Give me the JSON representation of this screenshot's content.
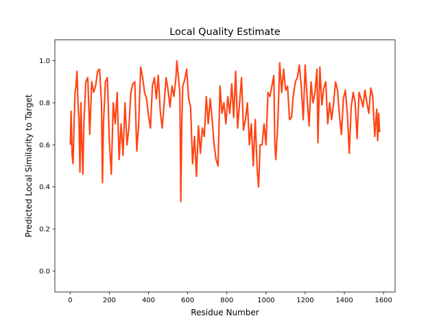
{
  "chart_data": {
    "type": "line",
    "title": "Local Quality Estimate",
    "xlabel": "Residue Number",
    "ylabel": "Predicted Local Similarity to Target",
    "xlim": [
      -78,
      1659
    ],
    "ylim": [
      -0.1,
      1.1
    ],
    "xticks": [
      0,
      200,
      400,
      600,
      800,
      1000,
      1200,
      1400,
      1600
    ],
    "xtick_labels": [
      "0",
      "200",
      "400",
      "600",
      "800",
      "1000",
      "1200",
      "1400",
      "1600"
    ],
    "yticks": [
      0.0,
      0.2,
      0.4,
      0.6,
      0.8,
      1.0
    ],
    "ytick_labels": [
      "0.0",
      "0.2",
      "0.4",
      "0.6",
      "0.8",
      "1.0"
    ],
    "grid": false,
    "series": [
      {
        "name": "local quality",
        "color": "#ff4515",
        "x": [
          1,
          5,
          10,
          15,
          20,
          25,
          30,
          35,
          40,
          45,
          50,
          55,
          60,
          65,
          70,
          80,
          90,
          100,
          110,
          120,
          130,
          140,
          150,
          160,
          165,
          170,
          180,
          190,
          200,
          210,
          220,
          230,
          240,
          250,
          260,
          270,
          280,
          290,
          300,
          310,
          320,
          330,
          340,
          350,
          360,
          370,
          380,
          390,
          400,
          410,
          420,
          430,
          440,
          450,
          460,
          470,
          480,
          490,
          500,
          510,
          520,
          530,
          540,
          545,
          550,
          560,
          565,
          570,
          575,
          585,
          595,
          605,
          615,
          625,
          635,
          645,
          655,
          665,
          675,
          685,
          695,
          705,
          715,
          725,
          735,
          745,
          755,
          765,
          775,
          785,
          795,
          805,
          815,
          825,
          835,
          845,
          855,
          865,
          875,
          885,
          895,
          905,
          915,
          925,
          935,
          945,
          955,
          962,
          970,
          980,
          990,
          1000,
          1010,
          1020,
          1030,
          1040,
          1045,
          1050,
          1060,
          1070,
          1080,
          1090,
          1100,
          1110,
          1120,
          1130,
          1140,
          1150,
          1160,
          1170,
          1180,
          1190,
          1200,
          1210,
          1220,
          1230,
          1240,
          1250,
          1260,
          1265,
          1275,
          1285,
          1295,
          1305,
          1315,
          1325,
          1335,
          1345,
          1355,
          1365,
          1375,
          1385,
          1395,
          1405,
          1415,
          1425,
          1435,
          1445,
          1455,
          1465,
          1475,
          1485,
          1495,
          1505,
          1515,
          1525,
          1535,
          1545,
          1555,
          1565,
          1570,
          1575,
          1580
        ],
        "y": [
          0.6,
          0.76,
          0.55,
          0.51,
          0.7,
          0.85,
          0.88,
          0.95,
          0.8,
          0.72,
          0.47,
          0.8,
          0.6,
          0.46,
          0.7,
          0.9,
          0.92,
          0.65,
          0.9,
          0.85,
          0.88,
          0.95,
          0.96,
          0.8,
          0.42,
          0.7,
          0.9,
          0.92,
          0.62,
          0.46,
          0.8,
          0.7,
          0.85,
          0.53,
          0.7,
          0.55,
          0.8,
          0.6,
          0.68,
          0.85,
          0.89,
          0.9,
          0.57,
          0.7,
          0.97,
          0.92,
          0.85,
          0.82,
          0.74,
          0.68,
          0.88,
          0.92,
          0.82,
          0.93,
          0.76,
          0.68,
          0.8,
          0.92,
          0.86,
          0.78,
          0.88,
          0.83,
          0.92,
          1.0,
          0.95,
          0.85,
          0.33,
          0.7,
          0.88,
          0.91,
          0.96,
          0.82,
          0.78,
          0.51,
          0.64,
          0.45,
          0.69,
          0.56,
          0.68,
          0.64,
          0.83,
          0.7,
          0.82,
          0.72,
          0.6,
          0.53,
          0.5,
          0.88,
          0.75,
          0.8,
          0.7,
          0.83,
          0.75,
          0.89,
          0.73,
          0.95,
          0.68,
          0.8,
          0.92,
          0.67,
          0.72,
          0.8,
          0.6,
          0.7,
          0.5,
          0.72,
          0.48,
          0.4,
          0.6,
          0.6,
          0.7,
          0.6,
          0.85,
          0.83,
          0.88,
          0.93,
          0.6,
          0.53,
          0.7,
          0.99,
          0.85,
          0.96,
          0.86,
          0.88,
          0.72,
          0.73,
          0.84,
          0.9,
          0.92,
          0.98,
          0.88,
          0.72,
          0.98,
          0.82,
          0.69,
          0.9,
          0.8,
          0.85,
          0.96,
          0.61,
          0.97,
          0.79,
          0.87,
          0.9,
          0.7,
          0.8,
          0.72,
          0.8,
          0.9,
          0.86,
          0.74,
          0.65,
          0.82,
          0.86,
          0.75,
          0.56,
          0.78,
          0.85,
          0.8,
          0.63,
          0.85,
          0.82,
          0.78,
          0.86,
          0.8,
          0.75,
          0.87,
          0.83,
          0.64,
          0.77,
          0.62,
          0.75,
          0.66
        ]
      }
    ]
  }
}
